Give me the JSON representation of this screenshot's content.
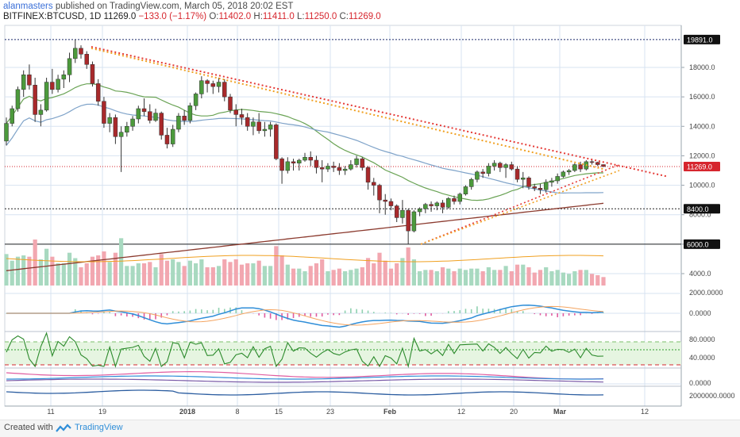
{
  "header": {
    "author": "alanmasters",
    "published_text": "published on TradingView.com, March 05, 2018 20:02 EST",
    "symbol": "BITFINEX:BTCUSD, 1D",
    "last": "11269.0",
    "change": "−133.0 (−1.17%)",
    "o_label": "O:",
    "o_val": "11402.0",
    "h_label": "H:",
    "h_val": "11411.0",
    "l_label": "L:",
    "l_val": "11250.0",
    "c_label": "C:",
    "c_val": "11269.0"
  },
  "price_axis": {
    "ticks": [
      "18000.0",
      "16000.0",
      "14000.0",
      "12000.0",
      "10000.0",
      "8000.0",
      "6000.0",
      "4000.0"
    ],
    "tags": [
      {
        "label": "19891.0",
        "price": 19891,
        "style": "dark"
      },
      {
        "label": "11269.0",
        "price": 11269,
        "style": "red"
      },
      {
        "label": "8400.0",
        "price": 8400,
        "style": "dark"
      },
      {
        "label": "6000.0",
        "price": 6000,
        "style": "dark"
      }
    ]
  },
  "indicator_axes": {
    "macd": [
      "2000.0000",
      "0.0000"
    ],
    "rsi": [
      "80.0000",
      "40.0000"
    ],
    "osc": [
      "0.0000"
    ],
    "obv": [
      "2000000.0000"
    ]
  },
  "time_axis": [
    "11",
    "19",
    "2018",
    "8",
    "15",
    "23",
    "Feb",
    "12",
    "20",
    "Mar",
    "12"
  ],
  "footer": {
    "created_with": "Created with",
    "brand": "TradingView"
  },
  "colors": {
    "up": "#4c9a3c",
    "down": "#a8292b",
    "vol_up": "#a8d9c0",
    "vol_down": "#f2a7b0",
    "ma_green": "#6aa355",
    "ma_blue": "#7fa3c9",
    "ma_brown": "#8b3a2e",
    "trend_red": "#e53935",
    "trend_orange": "#f0a020",
    "macd_blue": "#2f8ed8",
    "macd_orange": "#f4a460"
  },
  "chart_data": {
    "type": "candlestick",
    "symbol": "BITFINEX:BTCUSD",
    "interval": "1D",
    "y_range": [
      3600,
      20600
    ],
    "candles": [
      [
        13000,
        14600,
        12700,
        14200
      ],
      [
        14200,
        15400,
        14000,
        15200
      ],
      [
        15200,
        16700,
        15000,
        16500
      ],
      [
        16500,
        17800,
        16000,
        17500
      ],
      [
        17500,
        18200,
        16500,
        16800
      ],
      [
        16800,
        17300,
        14300,
        14800
      ],
      [
        14800,
        15500,
        14000,
        15100
      ],
      [
        15100,
        17300,
        15000,
        17000
      ],
      [
        17000,
        17900,
        16200,
        16500
      ],
      [
        16500,
        17500,
        16300,
        17200
      ],
      [
        17200,
        17800,
        16600,
        17500
      ],
      [
        17500,
        19000,
        17000,
        18600
      ],
      [
        18600,
        19891,
        18300,
        19300
      ],
      [
        19300,
        19500,
        18600,
        18900
      ],
      [
        18900,
        19100,
        17900,
        18200
      ],
      [
        18200,
        18400,
        16700,
        16900
      ],
      [
        16900,
        17200,
        15400,
        15700
      ],
      [
        15700,
        16000,
        13900,
        14200
      ],
      [
        14200,
        14900,
        13600,
        14600
      ],
      [
        14600,
        14800,
        12800,
        13300
      ],
      [
        13300,
        14000,
        10900,
        13600
      ],
      [
        13600,
        14300,
        13300,
        14000
      ],
      [
        14000,
        14700,
        13700,
        14500
      ],
      [
        14500,
        15400,
        14200,
        15200
      ],
      [
        15200,
        15900,
        14700,
        15000
      ],
      [
        15000,
        15500,
        14200,
        14400
      ],
      [
        14400,
        15200,
        14300,
        14900
      ],
      [
        14900,
        15000,
        13100,
        13400
      ],
      [
        13400,
        13900,
        12500,
        12800
      ],
      [
        12800,
        14100,
        12600,
        13800
      ],
      [
        13800,
        14900,
        13600,
        14700
      ],
      [
        14700,
        15100,
        14100,
        14400
      ],
      [
        14400,
        15600,
        14200,
        15400
      ],
      [
        15400,
        16300,
        15100,
        16200
      ],
      [
        16200,
        17400,
        15900,
        17100
      ],
      [
        17100,
        17200,
        16300,
        16900
      ],
      [
        16900,
        17100,
        16200,
        16700
      ],
      [
        16700,
        17300,
        16300,
        17000
      ],
      [
        17000,
        17200,
        15700,
        16000
      ],
      [
        16000,
        16200,
        14900,
        15100
      ],
      [
        15100,
        15500,
        14000,
        14800
      ],
      [
        14800,
        15200,
        14100,
        14600
      ],
      [
        14600,
        14900,
        13700,
        14000
      ],
      [
        14000,
        14600,
        13400,
        14300
      ],
      [
        14300,
        14900,
        13500,
        13700
      ],
      [
        13700,
        14300,
        13300,
        13800
      ],
      [
        13800,
        14300,
        13300,
        14100
      ],
      [
        14100,
        14200,
        11700,
        11800
      ],
      [
        11800,
        11900,
        10100,
        11000
      ],
      [
        11000,
        11900,
        10800,
        11600
      ],
      [
        11600,
        11800,
        11000,
        11500
      ],
      [
        11500,
        11800,
        11000,
        11700
      ],
      [
        11700,
        12200,
        11600,
        11900
      ],
      [
        11900,
        12300,
        11300,
        11700
      ],
      [
        11700,
        12000,
        10800,
        11200
      ],
      [
        11200,
        11700,
        10200,
        11100
      ],
      [
        11100,
        11500,
        10900,
        11300
      ],
      [
        11300,
        11600,
        10900,
        11200
      ],
      [
        11200,
        11500,
        10700,
        11000
      ],
      [
        11000,
        11300,
        10700,
        11100
      ],
      [
        11100,
        11700,
        11000,
        11400
      ],
      [
        11400,
        12000,
        11200,
        11800
      ],
      [
        11800,
        11900,
        11000,
        11200
      ],
      [
        11200,
        11300,
        9700,
        10200
      ],
      [
        10200,
        10500,
        9300,
        10000
      ],
      [
        10000,
        10100,
        8100,
        9000
      ],
      [
        9000,
        9400,
        8000,
        8900
      ],
      [
        8900,
        9100,
        8300,
        8600
      ],
      [
        8600,
        8700,
        7500,
        7800
      ],
      [
        7800,
        9000,
        7400,
        8300
      ],
      [
        8300,
        8400,
        6000,
        6900
      ],
      [
        6900,
        8300,
        6800,
        8200
      ],
      [
        8200,
        8500,
        7900,
        8400
      ],
      [
        8400,
        8800,
        8100,
        8700
      ],
      [
        8700,
        8900,
        8200,
        8600
      ],
      [
        8600,
        8900,
        8300,
        8800
      ],
      [
        8800,
        9000,
        8100,
        8500
      ],
      [
        8500,
        9200,
        8400,
        9100
      ],
      [
        9100,
        9300,
        8700,
        8900
      ],
      [
        8900,
        9500,
        8700,
        9400
      ],
      [
        9400,
        10000,
        9300,
        9900
      ],
      [
        9900,
        10500,
        9700,
        10400
      ],
      [
        10400,
        11000,
        10200,
        10900
      ],
      [
        10900,
        11100,
        10500,
        10800
      ],
      [
        10800,
        11500,
        10600,
        11300
      ],
      [
        11300,
        11700,
        11000,
        11500
      ],
      [
        11500,
        11600,
        10900,
        11200
      ],
      [
        11200,
        11500,
        10500,
        11400
      ],
      [
        11400,
        11600,
        11000,
        11100
      ],
      [
        11100,
        11300,
        10200,
        10400
      ],
      [
        10400,
        10900,
        9800,
        10500
      ],
      [
        10500,
        10600,
        9700,
        9900
      ],
      [
        9900,
        10100,
        9600,
        9800
      ],
      [
        9800,
        10100,
        9400,
        9700
      ],
      [
        9700,
        10400,
        9500,
        10200
      ],
      [
        10200,
        10500,
        9900,
        10300
      ],
      [
        10300,
        10800,
        10100,
        10600
      ],
      [
        10600,
        11000,
        10500,
        10900
      ],
      [
        10900,
        11100,
        10700,
        11000
      ],
      [
        11000,
        11500,
        10900,
        11400
      ],
      [
        11400,
        11600,
        10900,
        11100
      ],
      [
        11100,
        11700,
        11000,
        11600
      ],
      [
        11600,
        11800,
        11400,
        11550
      ],
      [
        11550,
        11600,
        11300,
        11402
      ],
      [
        11402,
        11411,
        11250,
        11269
      ]
    ],
    "volume_scale_note": "relative"
  }
}
